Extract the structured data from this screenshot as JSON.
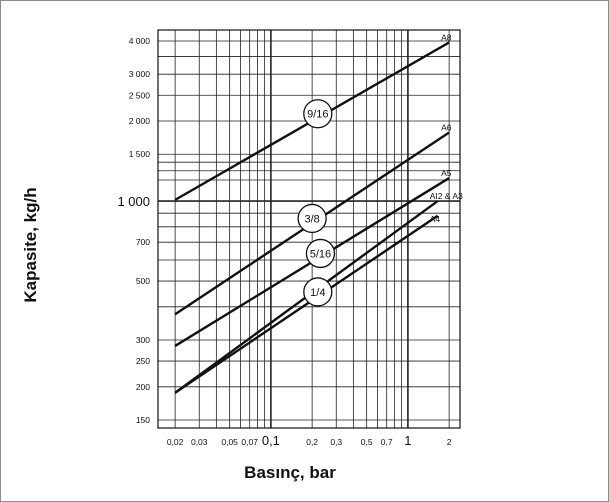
{
  "chart_data": {
    "type": "line",
    "xlabel": "Basınç, bar",
    "ylabel": "Kapasite, kg/h",
    "x_scale": "log",
    "y_scale": "log",
    "xlim": [
      0.015,
      2.4
    ],
    "ylim": [
      140,
      4400
    ],
    "grid": true,
    "x_ticks": [
      {
        "value": 0.02,
        "label": "0,02"
      },
      {
        "value": 0.03,
        "label": "0,03"
      },
      {
        "value": 0.05,
        "label": "0,05"
      },
      {
        "value": 0.07,
        "label": "0,07"
      },
      {
        "value": 0.1,
        "label": "0,1"
      },
      {
        "value": 0.2,
        "label": "0,2"
      },
      {
        "value": 0.3,
        "label": "0,3"
      },
      {
        "value": 0.5,
        "label": "0,5"
      },
      {
        "value": 0.7,
        "label": "0,7"
      },
      {
        "value": 1,
        "label": "1"
      },
      {
        "value": 2,
        "label": "2"
      }
    ],
    "x_grid": [
      0.02,
      0.03,
      0.04,
      0.05,
      0.06,
      0.07,
      0.08,
      0.09,
      0.1,
      0.2,
      0.3,
      0.4,
      0.5,
      0.6,
      0.7,
      0.8,
      0.9,
      1,
      2
    ],
    "y_ticks": [
      {
        "value": 150,
        "label": "150"
      },
      {
        "value": 200,
        "label": "200"
      },
      {
        "value": 250,
        "label": "250"
      },
      {
        "value": 300,
        "label": "300"
      },
      {
        "value": 500,
        "label": "500"
      },
      {
        "value": 700,
        "label": "700"
      },
      {
        "value": 1000,
        "label": "1 000"
      },
      {
        "value": 1500,
        "label": "1 500"
      },
      {
        "value": 2000,
        "label": "2 000"
      },
      {
        "value": 2500,
        "label": "2 500"
      },
      {
        "value": 3000,
        "label": "3 000"
      },
      {
        "value": 4000,
        "label": "4 000"
      }
    ],
    "y_grid": [
      150,
      200,
      250,
      300,
      400,
      500,
      600,
      700,
      800,
      900,
      1000,
      1200,
      1300,
      1400,
      1500,
      2000,
      2500,
      3000,
      3500,
      4000
    ],
    "series": [
      {
        "name": "A8",
        "label": "9/16",
        "x": [
          0.02,
          2
        ],
        "y": [
          1010,
          3950
        ]
      },
      {
        "name": "A6",
        "label": "3/8",
        "x": [
          0.02,
          2
        ],
        "y": [
          375,
          1810
        ]
      },
      {
        "name": "A5",
        "label": "5/16",
        "x": [
          0.02,
          2
        ],
        "y": [
          285,
          1220
        ]
      },
      {
        "name": "AI2 & A3",
        "label": "",
        "x": [
          0.02,
          1.65
        ],
        "y": [
          190,
          1000
        ]
      },
      {
        "name": "A4",
        "label": "1/4",
        "x": [
          0.02,
          1.65
        ],
        "y": [
          190,
          880
        ]
      }
    ],
    "circle_labels": [
      {
        "text": "9/16",
        "x": 0.22,
        "y": 2130
      },
      {
        "text": "3/8",
        "x": 0.2,
        "y": 860
      },
      {
        "text": "5/16",
        "x": 0.23,
        "y": 635
      },
      {
        "text": "1/4",
        "x": 0.22,
        "y": 455
      }
    ]
  }
}
